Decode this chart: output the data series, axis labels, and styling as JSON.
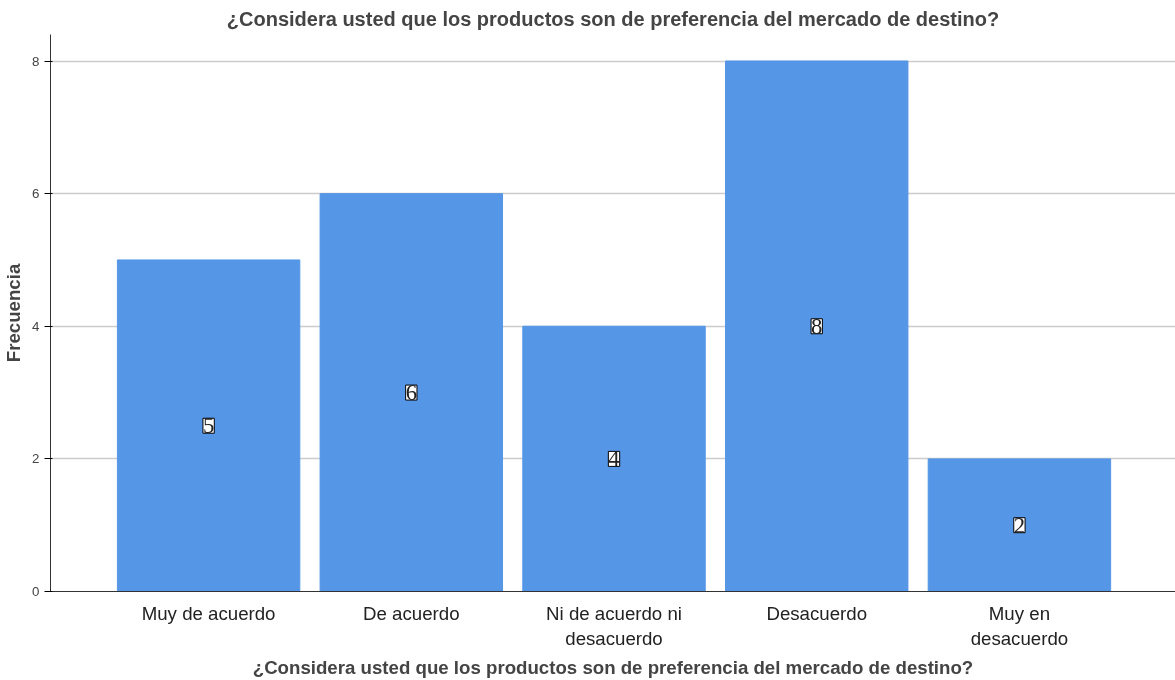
{
  "chart_data": {
    "type": "bar",
    "title": "¿Considera usted que los productos son de preferencia del mercado de destino?",
    "xlabel": "¿Considera usted que los productos son de preferencia del mercado de destino?",
    "ylabel": "Frecuencia",
    "categories": [
      "Muy de acuerdo",
      "De acuerdo",
      "Ni de acuerdo ni\ndesacuerdo",
      "Desacuerdo",
      "Muy en\ndesacuerdo"
    ],
    "values": [
      5,
      6,
      4,
      8,
      2
    ],
    "color": "#5596e6",
    "ylim": [
      0,
      8.4
    ],
    "yticks": [
      0,
      2,
      4,
      6,
      8
    ],
    "grid": "y",
    "data_labels": true
  }
}
